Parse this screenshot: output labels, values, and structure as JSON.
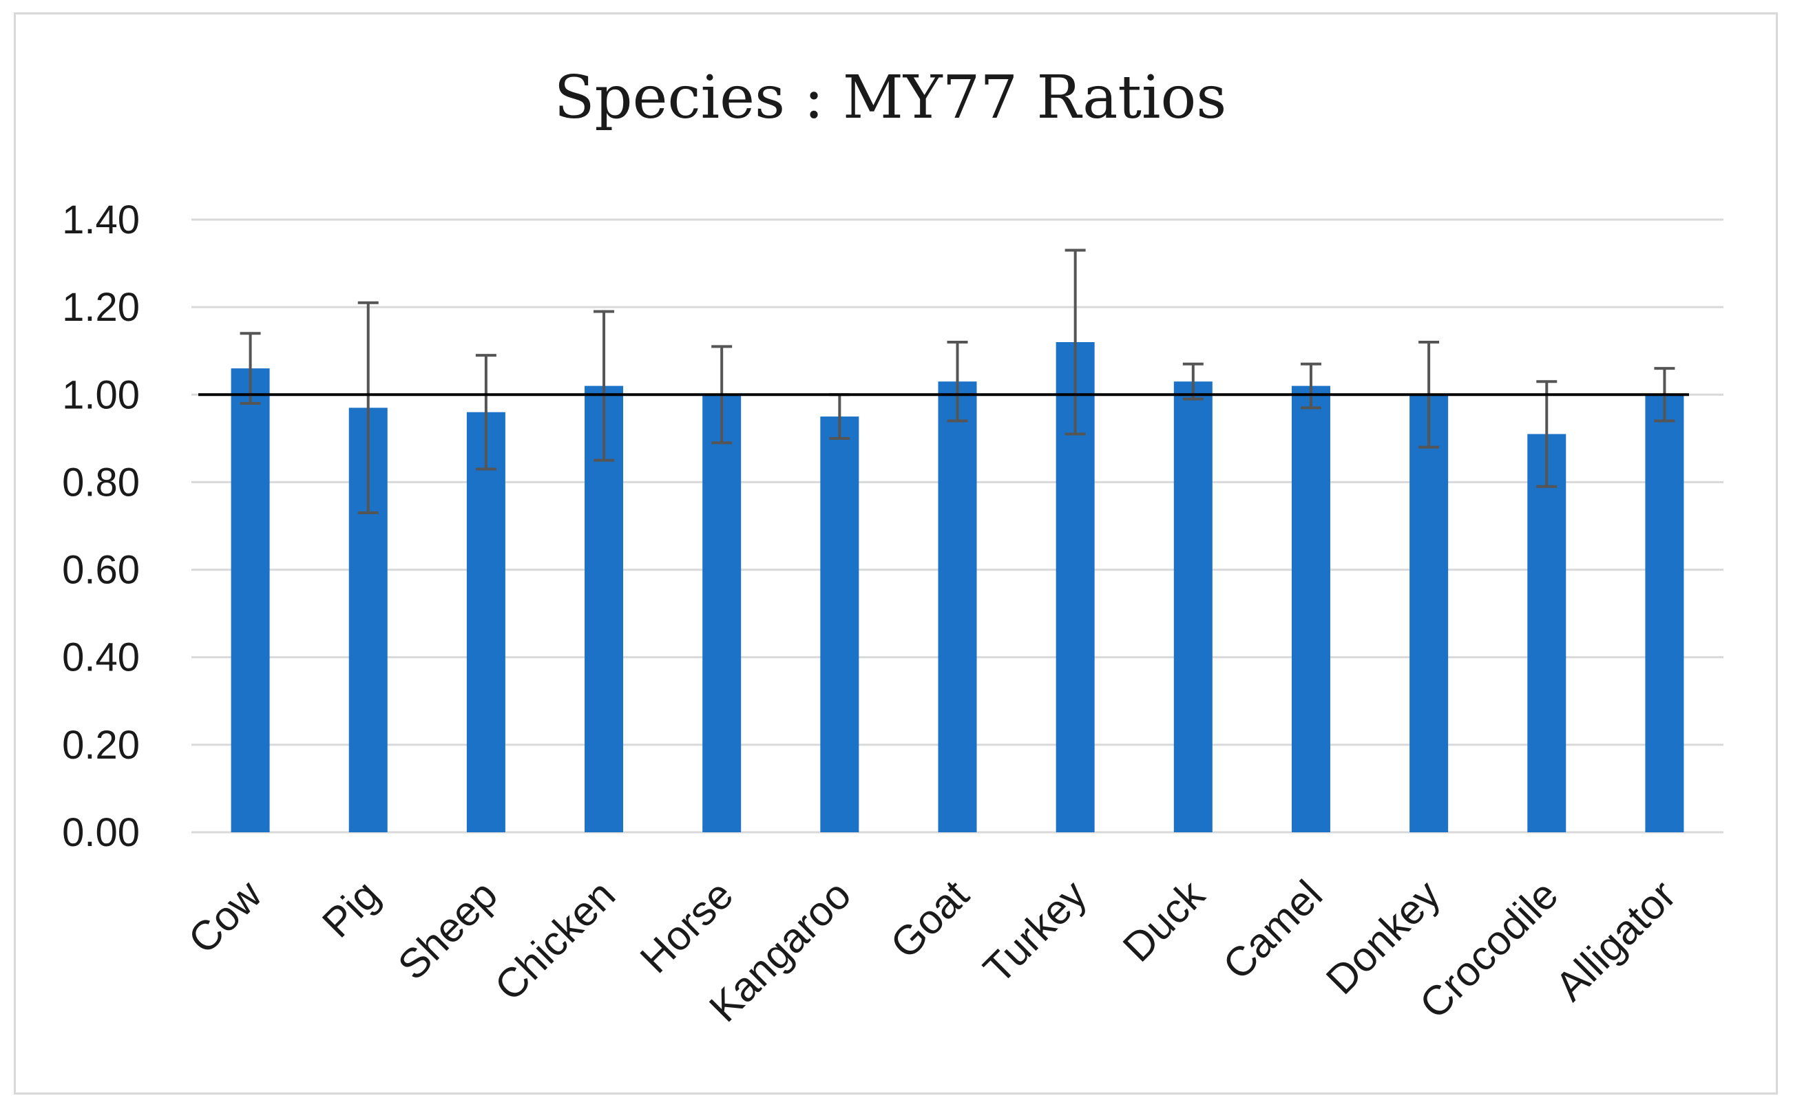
{
  "chart_data": {
    "type": "bar",
    "title": "Species : MY77 Ratios",
    "xlabel": "",
    "ylabel": "",
    "ylim": [
      0,
      1.4
    ],
    "y_ticks": [
      "0.00",
      "0.20",
      "0.40",
      "0.60",
      "0.80",
      "1.00",
      "1.20",
      "1.40"
    ],
    "grid": true,
    "reference_line": 1.0,
    "categories": [
      "Cow",
      "Pig",
      "Sheep",
      "Chicken",
      "Horse",
      "Kangaroo",
      "Goat",
      "Turkey",
      "Duck",
      "Camel",
      "Donkey",
      "Crocodile",
      "Alligator"
    ],
    "values": [
      1.06,
      0.97,
      0.96,
      1.02,
      1.0,
      0.95,
      1.03,
      1.12,
      1.03,
      1.02,
      1.0,
      0.91,
      1.0
    ],
    "error": [
      0.08,
      0.24,
      0.13,
      0.17,
      0.11,
      0.05,
      0.09,
      0.21,
      0.04,
      0.05,
      0.12,
      0.12,
      0.06
    ],
    "colors": {
      "bar": "#1b72c6",
      "error_bar": "#555555",
      "reference_line": "#000000",
      "grid": "#d9d9d9"
    }
  }
}
